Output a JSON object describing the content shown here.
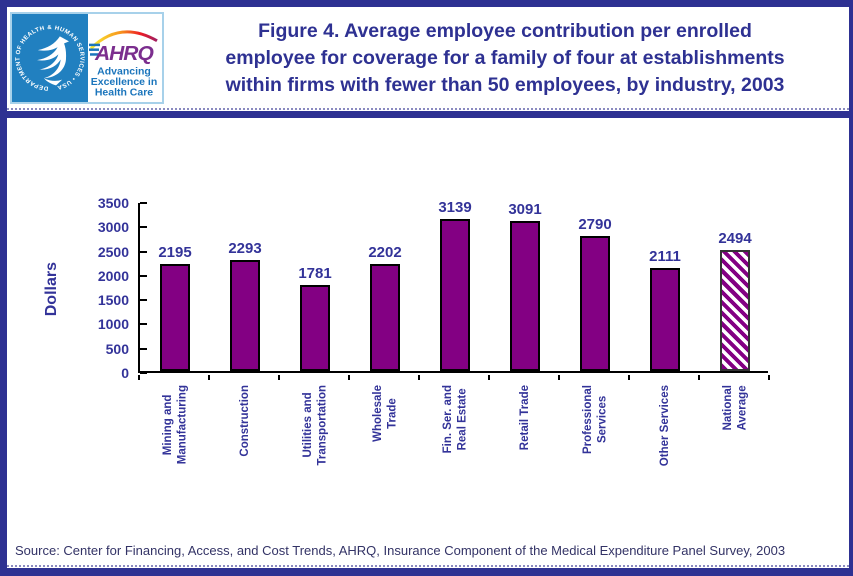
{
  "header": {
    "hhs_logo": {
      "seal_text": "DEPARTMENT OF HEALTH & HUMAN SERVICES • USA"
    },
    "ahrq_logo": {
      "name": "AHRQ",
      "tagline_lines": [
        "Advancing",
        "Excellence in",
        "Health Care"
      ]
    },
    "title_lines": [
      "Figure 4. Average employee contribution per enrolled",
      "employee for coverage for a family of four at establishments",
      "within firms with fewer than 50 employees, by industry, 2003"
    ]
  },
  "chart_data": {
    "type": "bar",
    "title": "Figure 4. Average employee contribution per enrolled employee for coverage for a family of four at establishments within firms with fewer than 50 employees, by industry, 2003",
    "xlabel": "",
    "ylabel": "Dollars",
    "ylim": [
      0,
      3500
    ],
    "yticks": [
      0,
      500,
      1000,
      1500,
      2000,
      2500,
      3000,
      3500
    ],
    "grid": false,
    "legend": false,
    "value_labels_shown": true,
    "categories": [
      "Mining and\nManufacturing",
      "Construction",
      "Utilities and\nTransportation",
      "Wholesale\nTrade",
      "Fin. Ser. and\nReal Estate",
      "Retail Trade",
      "Professional\nServices",
      "Other Services",
      "National\nAverage"
    ],
    "values": [
      2195,
      2293,
      1781,
      2202,
      3139,
      3091,
      2790,
      2111,
      2494
    ],
    "hatched_index": 8,
    "bar_color": "#830083",
    "hatch_style": "diagonal-purple-stripes-on-white"
  },
  "source": "Source: Center for Financing, Access, and Cost Trends, AHRQ, Insurance Component of the Medical Expenditure Panel Survey, 2003",
  "colors": {
    "frame_border": "#2E3192",
    "title_text": "#2E3192",
    "axis_text": "#333399",
    "bar_fill": "#830083",
    "bar_border": "#000000",
    "source_text": "#333366",
    "hhs_blue": "#2180C0",
    "ahrq_purple": "#7B2E8E",
    "tagline_blue": "#1B75BC"
  }
}
